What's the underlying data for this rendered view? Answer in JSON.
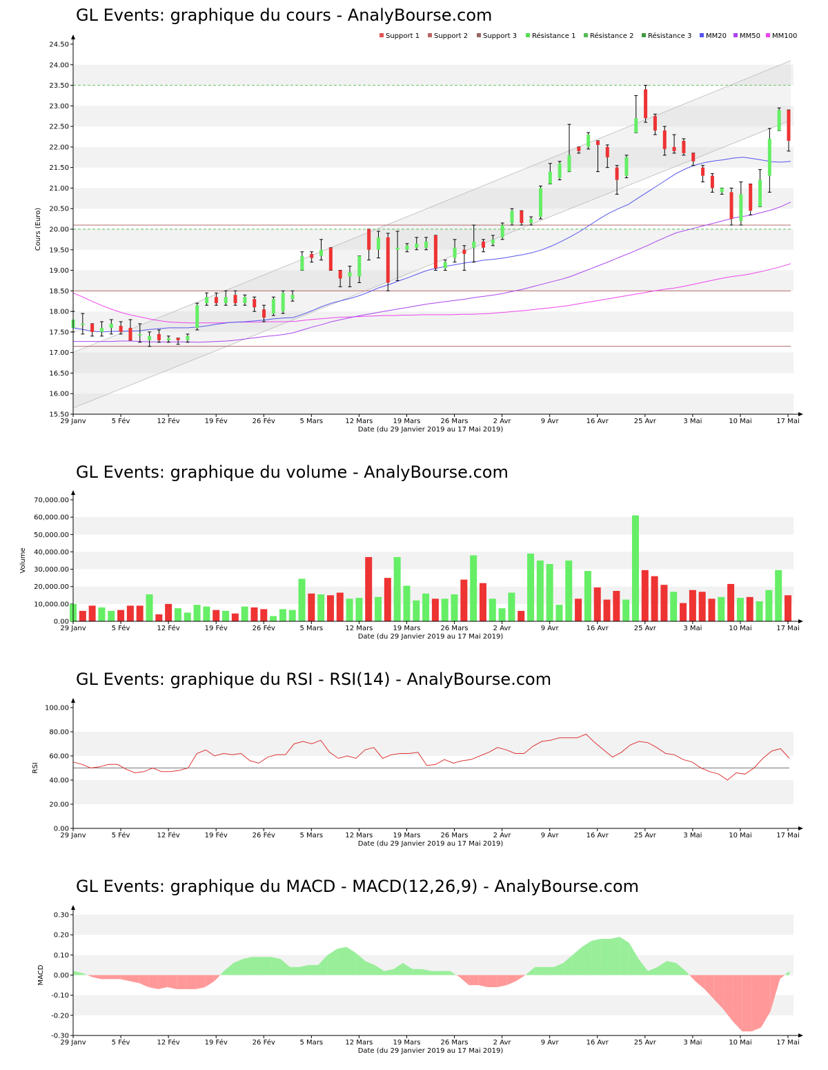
{
  "titles": {
    "price": "GL Events: graphique du cours - AnalyBourse.com",
    "volume": "GL Events: graphique du volume - AnalyBourse.com",
    "rsi": "GL Events: graphique du RSI - RSI(14) - AnalyBourse.com",
    "macd": "GL Events: graphique du MACD - MACD(12,26,9) - AnalyBourse.com"
  },
  "xaxis_label": "Date (du 29 Janvier 2019 au 17 Mai 2019)",
  "x_ticks": [
    "29 Janv",
    "5 Fév",
    "12 Fév",
    "19 Fév",
    "26 Fév",
    "5 Mars",
    "12 Mars",
    "19 Mars",
    "26 Mars",
    "2 Avr",
    "9 Avr",
    "16 Avr",
    "25 Avr",
    "3 Mai",
    "10 Mai",
    "17 Mai"
  ],
  "colors": {
    "up": "#66ee66",
    "down": "#ee3333",
    "mm20": "#5555ee",
    "mm50": "#aa44ee",
    "mm100": "#ee44ee",
    "support": "#aa5555",
    "resistance": "#55bb55",
    "band_light": "#f2f2f2",
    "grid": "#dddddd"
  },
  "chart_data": [
    {
      "type": "candlestick",
      "ylabel": "Cours (Euro)",
      "ylim": [
        15.5,
        24.5
      ],
      "y_ticks": [
        "15.50",
        "16.00",
        "16.50",
        "17.00",
        "17.50",
        "18.00",
        "18.50",
        "19.00",
        "19.50",
        "20.00",
        "20.50",
        "21.00",
        "21.50",
        "22.00",
        "22.50",
        "23.00",
        "23.50",
        "24.00",
        "24.50"
      ],
      "legend": [
        "Support 1",
        "Support 2",
        "Support 3",
        "Résistance 1",
        "Résistance 2",
        "Résistance 3",
        "MM20",
        "MM50",
        "MM100"
      ],
      "legend_colors": [
        "#dd5555",
        "#bb6666",
        "#996666",
        "#55dd55",
        "#55bb55",
        "#449944",
        "#5555ee",
        "#aa44ee",
        "#ee44ee"
      ],
      "candles": [
        {
          "o": 17.6,
          "c": 17.8,
          "h": 18.0,
          "l": 17.5
        },
        {
          "o": 17.7,
          "c": 17.7,
          "h": 17.95,
          "l": 17.45
        },
        {
          "o": 17.7,
          "c": 17.5,
          "h": 17.7,
          "l": 17.4
        },
        {
          "o": 17.5,
          "c": 17.6,
          "h": 17.75,
          "l": 17.4
        },
        {
          "o": 17.6,
          "c": 17.7,
          "h": 17.8,
          "l": 17.45
        },
        {
          "o": 17.65,
          "c": 17.5,
          "h": 17.75,
          "l": 17.45
        },
        {
          "o": 17.6,
          "c": 17.3,
          "h": 17.8,
          "l": 17.3
        },
        {
          "o": 17.45,
          "c": 17.45,
          "h": 17.7,
          "l": 17.25
        },
        {
          "o": 17.3,
          "c": 17.4,
          "h": 17.5,
          "l": 17.15
        },
        {
          "o": 17.45,
          "c": 17.3,
          "h": 17.55,
          "l": 17.25
        },
        {
          "o": 17.3,
          "c": 17.35,
          "h": 17.4,
          "l": 17.25
        },
        {
          "o": 17.35,
          "c": 17.3,
          "h": 17.35,
          "l": 17.2
        },
        {
          "o": 17.3,
          "c": 17.4,
          "h": 17.45,
          "l": 17.25
        },
        {
          "o": 17.6,
          "c": 18.15,
          "h": 18.2,
          "l": 17.55
        },
        {
          "o": 18.2,
          "c": 18.35,
          "h": 18.45,
          "l": 18.15
        },
        {
          "o": 18.35,
          "c": 18.2,
          "h": 18.45,
          "l": 18.15
        },
        {
          "o": 18.2,
          "c": 18.35,
          "h": 18.5,
          "l": 18.15
        },
        {
          "o": 18.4,
          "c": 18.2,
          "h": 18.5,
          "l": 18.15
        },
        {
          "o": 18.2,
          "c": 18.35,
          "h": 18.4,
          "l": 18.15
        },
        {
          "o": 18.3,
          "c": 18.1,
          "h": 18.35,
          "l": 18.0
        },
        {
          "o": 18.05,
          "c": 17.85,
          "h": 18.15,
          "l": 17.75
        },
        {
          "o": 17.95,
          "c": 18.3,
          "h": 18.35,
          "l": 17.9
        },
        {
          "o": 18.0,
          "c": 18.45,
          "h": 18.5,
          "l": 17.95
        },
        {
          "o": 18.3,
          "c": 18.4,
          "h": 18.5,
          "l": 18.25
        },
        {
          "o": 19.0,
          "c": 19.35,
          "h": 19.45,
          "l": 19.0
        },
        {
          "o": 19.4,
          "c": 19.3,
          "h": 19.45,
          "l": 19.2
        },
        {
          "o": 19.35,
          "c": 19.5,
          "h": 19.75,
          "l": 19.25
        },
        {
          "o": 19.55,
          "c": 19.0,
          "h": 19.55,
          "l": 19.0
        },
        {
          "o": 19.0,
          "c": 18.8,
          "h": 19.0,
          "l": 18.6
        },
        {
          "o": 18.85,
          "c": 18.95,
          "h": 19.1,
          "l": 18.6
        },
        {
          "o": 18.85,
          "c": 19.35,
          "h": 19.35,
          "l": 18.7
        },
        {
          "o": 20.0,
          "c": 19.5,
          "h": 20.0,
          "l": 19.25
        },
        {
          "o": 19.5,
          "c": 19.8,
          "h": 19.95,
          "l": 19.3
        },
        {
          "o": 19.8,
          "c": 18.7,
          "h": 19.9,
          "l": 18.5
        },
        {
          "o": 19.5,
          "c": 19.55,
          "h": 19.95,
          "l": 18.75
        },
        {
          "o": 19.5,
          "c": 19.6,
          "h": 19.65,
          "l": 19.45
        },
        {
          "o": 19.55,
          "c": 19.65,
          "h": 19.8,
          "l": 19.5
        },
        {
          "o": 19.55,
          "c": 19.7,
          "h": 19.8,
          "l": 19.5
        },
        {
          "o": 19.85,
          "c": 19.05,
          "h": 19.85,
          "l": 19.0
        },
        {
          "o": 19.05,
          "c": 19.2,
          "h": 19.25,
          "l": 19.0
        },
        {
          "o": 19.3,
          "c": 19.55,
          "h": 19.75,
          "l": 19.2
        },
        {
          "o": 19.5,
          "c": 19.4,
          "h": 19.6,
          "l": 19.0
        },
        {
          "o": 19.55,
          "c": 19.7,
          "h": 20.1,
          "l": 19.2
        },
        {
          "o": 19.7,
          "c": 19.55,
          "h": 19.75,
          "l": 19.45
        },
        {
          "o": 19.65,
          "c": 19.75,
          "h": 19.85,
          "l": 19.6
        },
        {
          "o": 19.8,
          "c": 20.1,
          "h": 20.15,
          "l": 19.75
        },
        {
          "o": 20.15,
          "c": 20.45,
          "h": 20.5,
          "l": 20.1
        },
        {
          "o": 20.45,
          "c": 20.15,
          "h": 20.45,
          "l": 20.1
        },
        {
          "o": 20.15,
          "c": 20.25,
          "h": 20.3,
          "l": 20.1
        },
        {
          "o": 20.3,
          "c": 21.0,
          "h": 21.05,
          "l": 20.25
        },
        {
          "o": 21.1,
          "c": 21.4,
          "h": 21.6,
          "l": 21.1
        },
        {
          "o": 21.25,
          "c": 21.6,
          "h": 21.65,
          "l": 21.2
        },
        {
          "o": 21.4,
          "c": 21.8,
          "h": 22.55,
          "l": 21.4
        },
        {
          "o": 22.0,
          "c": 21.9,
          "h": 22.0,
          "l": 21.85
        },
        {
          "o": 22.0,
          "c": 22.3,
          "h": 22.35,
          "l": 21.95
        },
        {
          "o": 22.15,
          "c": 22.05,
          "h": 22.15,
          "l": 21.4
        },
        {
          "o": 22.0,
          "c": 21.75,
          "h": 22.05,
          "l": 21.5
        },
        {
          "o": 21.5,
          "c": 21.2,
          "h": 21.55,
          "l": 20.85
        },
        {
          "o": 21.3,
          "c": 21.75,
          "h": 21.8,
          "l": 21.25
        },
        {
          "o": 22.35,
          "c": 22.7,
          "h": 23.25,
          "l": 22.35
        },
        {
          "o": 23.4,
          "c": 22.7,
          "h": 23.5,
          "l": 22.6
        },
        {
          "o": 22.75,
          "c": 22.4,
          "h": 22.8,
          "l": 22.3
        },
        {
          "o": 22.4,
          "c": 21.95,
          "h": 22.5,
          "l": 21.8
        },
        {
          "o": 22.0,
          "c": 21.9,
          "h": 22.3,
          "l": 21.85
        },
        {
          "o": 22.15,
          "c": 21.85,
          "h": 22.2,
          "l": 21.8
        },
        {
          "o": 21.85,
          "c": 21.65,
          "h": 21.85,
          "l": 21.55
        },
        {
          "o": 21.5,
          "c": 21.3,
          "h": 21.55,
          "l": 21.15
        },
        {
          "o": 21.3,
          "c": 21.0,
          "h": 21.35,
          "l": 20.9
        },
        {
          "o": 20.9,
          "c": 21.0,
          "h": 21.0,
          "l": 20.85
        },
        {
          "o": 20.9,
          "c": 20.25,
          "h": 21.0,
          "l": 20.1
        },
        {
          "o": 20.2,
          "c": 20.85,
          "h": 21.15,
          "l": 20.1
        },
        {
          "o": 21.1,
          "c": 20.45,
          "h": 21.1,
          "l": 20.35
        },
        {
          "o": 20.55,
          "c": 21.2,
          "h": 21.45,
          "l": 20.55
        },
        {
          "o": 21.3,
          "c": 22.2,
          "h": 22.45,
          "l": 20.9
        },
        {
          "o": 22.4,
          "c": 22.9,
          "h": 22.95,
          "l": 22.4
        },
        {
          "o": 22.9,
          "c": 22.15,
          "h": 22.9,
          "l": 21.9
        }
      ],
      "mm20": [
        17.6,
        17.56,
        17.52,
        17.5,
        17.51,
        17.52,
        17.52,
        17.53,
        17.56,
        17.58,
        17.6,
        17.6,
        17.6,
        17.62,
        17.65,
        17.69,
        17.72,
        17.74,
        17.75,
        17.77,
        17.79,
        17.82,
        17.84,
        17.85,
        17.93,
        18.02,
        18.12,
        18.2,
        18.26,
        18.32,
        18.39,
        18.48,
        18.58,
        18.65,
        18.74,
        18.82,
        18.91,
        19.0,
        19.05,
        19.1,
        19.14,
        19.18,
        19.21,
        19.25,
        19.27,
        19.3,
        19.34,
        19.38,
        19.43,
        19.5,
        19.59,
        19.7,
        19.82,
        19.95,
        20.1,
        20.25,
        20.39,
        20.5,
        20.6,
        20.75,
        20.9,
        21.05,
        21.2,
        21.35,
        21.47,
        21.56,
        21.62,
        21.66,
        21.69,
        21.73,
        21.75,
        21.72,
        21.68,
        21.64,
        21.63,
        21.65
      ],
      "mm50": [
        17.27,
        17.27,
        17.27,
        17.27,
        17.27,
        17.28,
        17.28,
        17.27,
        17.26,
        17.26,
        17.26,
        17.26,
        17.26,
        17.25,
        17.26,
        17.27,
        17.28,
        17.3,
        17.33,
        17.36,
        17.39,
        17.41,
        17.44,
        17.48,
        17.55,
        17.62,
        17.68,
        17.75,
        17.8,
        17.85,
        17.9,
        17.94,
        17.98,
        18.02,
        18.06,
        18.1,
        18.14,
        18.18,
        18.21,
        18.24,
        18.27,
        18.3,
        18.34,
        18.37,
        18.4,
        18.44,
        18.49,
        18.54,
        18.6,
        18.66,
        18.72,
        18.78,
        18.85,
        18.94,
        19.03,
        19.12,
        19.21,
        19.31,
        19.4,
        19.5,
        19.6,
        19.71,
        19.81,
        19.91,
        19.97,
        20.03,
        20.09,
        20.15,
        20.21,
        20.27,
        20.31,
        20.35,
        20.41,
        20.47,
        20.55,
        20.66
      ],
      "mm100": [
        18.45,
        18.35,
        18.24,
        18.14,
        18.05,
        17.97,
        17.91,
        17.86,
        17.81,
        17.77,
        17.74,
        17.73,
        17.72,
        17.72,
        17.72,
        17.72,
        17.73,
        17.74,
        17.74,
        17.74,
        17.75,
        17.75,
        17.75,
        17.76,
        17.79,
        17.81,
        17.83,
        17.85,
        17.86,
        17.87,
        17.88,
        17.89,
        17.9,
        17.9,
        17.91,
        17.91,
        17.92,
        17.92,
        17.92,
        17.92,
        17.93,
        17.93,
        17.94,
        17.95,
        17.97,
        17.99,
        18.01,
        18.03,
        18.06,
        18.08,
        18.11,
        18.14,
        18.18,
        18.22,
        18.26,
        18.3,
        18.34,
        18.38,
        18.42,
        18.46,
        18.5,
        18.54,
        18.57,
        18.61,
        18.66,
        18.71,
        18.76,
        18.81,
        18.85,
        18.88,
        18.92,
        18.97,
        19.03,
        19.09,
        19.16
      ],
      "support_lines": [
        20.1,
        18.5,
        17.15
      ],
      "resistance_lines": [
        20.0,
        23.5
      ],
      "channel_upper": [
        17.0,
        24.1
      ],
      "channel_lower": [
        15.65,
        22.65
      ]
    },
    {
      "type": "bar",
      "ylabel": "Volume",
      "ylim": [
        0,
        70000
      ],
      "y_ticks": [
        "0.00",
        "10,000.00",
        "20,000.00",
        "30,000.00",
        "40,000.00",
        "50,000.00",
        "60,000.00",
        "70,000.00"
      ],
      "values": [
        10000,
        6000,
        9000,
        8000,
        6000,
        6500,
        9000,
        9000,
        15500,
        4000,
        10000,
        7500,
        5000,
        9500,
        8500,
        6500,
        6000,
        4500,
        8500,
        8000,
        7000,
        3000,
        7000,
        6500,
        24500,
        16000,
        15500,
        15000,
        16500,
        13000,
        13500,
        37000,
        14000,
        25000,
        37000,
        20500,
        12000,
        16000,
        13000,
        13000,
        15500,
        24000,
        38000,
        22000,
        13000,
        7500,
        16500,
        6000,
        39000,
        35000,
        33000,
        9500,
        35000,
        13000,
        29000,
        19500,
        12500,
        17500,
        12500,
        61000,
        29500,
        26000,
        21000,
        17000,
        10500,
        18000,
        17000,
        13000,
        14000,
        21500,
        13500,
        14000,
        11500,
        18000,
        29500,
        15000
      ],
      "up": [
        1,
        0,
        0,
        1,
        1,
        0,
        0,
        0,
        1,
        0,
        0,
        1,
        1,
        1,
        1,
        0,
        1,
        0,
        1,
        0,
        0,
        1,
        1,
        1,
        1,
        0,
        1,
        0,
        0,
        1,
        1,
        0,
        1,
        0,
        1,
        1,
        1,
        1,
        0,
        1,
        1,
        0,
        1,
        0,
        1,
        1,
        1,
        0,
        1,
        1,
        1,
        1,
        1,
        0,
        1,
        0,
        0,
        0,
        1,
        1,
        0,
        0,
        0,
        1,
        0,
        0,
        0,
        0,
        1,
        0,
        1,
        0,
        1,
        1,
        1,
        0
      ]
    },
    {
      "type": "line",
      "ylabel": "RSI",
      "ylim": [
        0,
        100
      ],
      "y_ticks": [
        "0.00",
        "20.00",
        "40.00",
        "60.00",
        "80.00",
        "100.00"
      ],
      "reference": 50,
      "values": [
        55,
        53,
        50,
        51,
        53,
        53,
        49,
        46,
        47,
        50,
        47,
        47,
        48,
        50,
        62,
        65,
        60,
        62,
        61,
        62,
        56,
        54,
        59,
        61,
        61,
        70,
        72,
        70,
        73,
        63,
        58,
        60,
        58,
        65,
        67,
        58,
        61,
        62,
        62,
        63,
        52,
        53,
        57,
        54,
        56,
        57,
        60,
        63,
        67,
        65,
        62,
        62,
        68,
        72,
        73,
        75,
        75,
        75,
        78,
        71,
        65,
        59,
        63,
        69,
        72,
        71,
        67,
        62,
        61,
        57,
        55,
        50,
        47,
        45,
        40,
        46,
        45,
        50,
        58,
        64,
        66,
        58
      ]
    },
    {
      "type": "area",
      "ylabel": "MACD",
      "ylim": [
        -0.3,
        0.3
      ],
      "y_ticks": [
        "-0.30",
        "-0.20",
        "-0.10",
        "0.00",
        "0.10",
        "0.20",
        "0.30"
      ],
      "values": [
        0.02,
        0.01,
        -0.01,
        -0.02,
        -0.02,
        -0.02,
        -0.03,
        -0.04,
        -0.06,
        -0.07,
        -0.06,
        -0.07,
        -0.07,
        -0.07,
        -0.06,
        -0.03,
        0.02,
        0.06,
        0.08,
        0.09,
        0.09,
        0.09,
        0.08,
        0.04,
        0.04,
        0.05,
        0.05,
        0.1,
        0.13,
        0.14,
        0.11,
        0.07,
        0.05,
        0.02,
        0.03,
        0.06,
        0.03,
        0.03,
        0.02,
        0.02,
        0.02,
        -0.01,
        -0.05,
        -0.05,
        -0.06,
        -0.06,
        -0.05,
        -0.03,
        0.0,
        0.04,
        0.04,
        0.04,
        0.06,
        0.1,
        0.14,
        0.17,
        0.18,
        0.18,
        0.19,
        0.16,
        0.08,
        0.02,
        0.04,
        0.07,
        0.06,
        0.02,
        -0.03,
        -0.07,
        -0.12,
        -0.17,
        -0.23,
        -0.28,
        -0.28,
        -0.26,
        -0.18,
        -0.02,
        0.02
      ]
    }
  ]
}
